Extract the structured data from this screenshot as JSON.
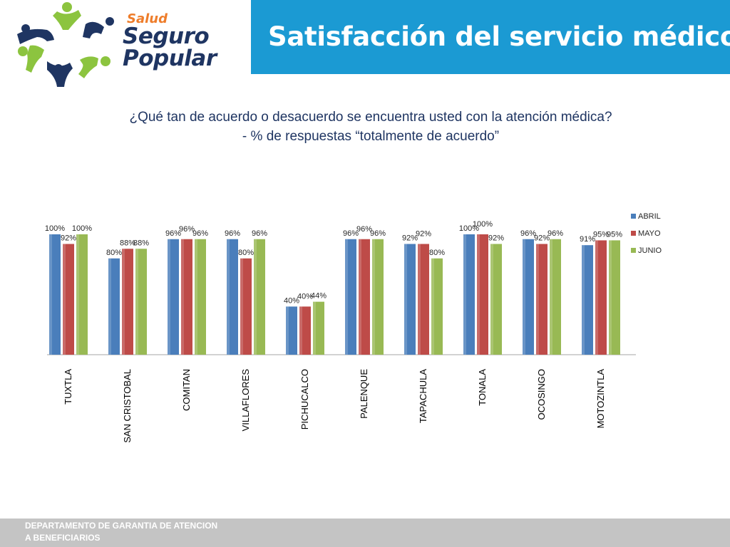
{
  "logo": {
    "line1": "Salud",
    "line2": "Seguro",
    "line3": "Popular"
  },
  "header": {
    "title": "Satisfacción del servicio médico"
  },
  "subtitle": {
    "line1": "¿Qué tan de acuerdo o desacuerdo se encuentra usted con la atención médica?",
    "line2": "- % de respuestas “totalmente de acuerdo”"
  },
  "colors": {
    "header_bg": "#1b9ad3",
    "abril": "#4a7ebb",
    "mayo": "#be4b48",
    "junio": "#98b954",
    "footer_bg": "#c4c4c4"
  },
  "chart_data": {
    "type": "bar",
    "categories": [
      "TUXTLA",
      "SAN CRISTOBAL",
      "COMITAN",
      "VILLAFLORES",
      "PICHUCALCO",
      "PALENQUE",
      "TAPACHULA",
      "TONALA",
      "OCOSINGO",
      "MOTOZINTLA"
    ],
    "series": [
      {
        "name": "ABRIL",
        "color": "#4a7ebb",
        "values": [
          100,
          80,
          96,
          96,
          40,
          96,
          92,
          100,
          96,
          91
        ]
      },
      {
        "name": "MAYO",
        "color": "#be4b48",
        "values": [
          92,
          88,
          96,
          80,
          40,
          96,
          92,
          100,
          92,
          95
        ]
      },
      {
        "name": "JUNIO",
        "color": "#98b954",
        "values": [
          100,
          88,
          96,
          96,
          44,
          96,
          80,
          92,
          96,
          95
        ]
      }
    ],
    "value_suffix": "%",
    "ylim": [
      0,
      100
    ],
    "grid": false,
    "legend": "right"
  },
  "footer": {
    "line1": "DEPARTAMENTO DE GARANTIA DE ATENCION",
    "line2": "A BENEFICIARIOS"
  }
}
